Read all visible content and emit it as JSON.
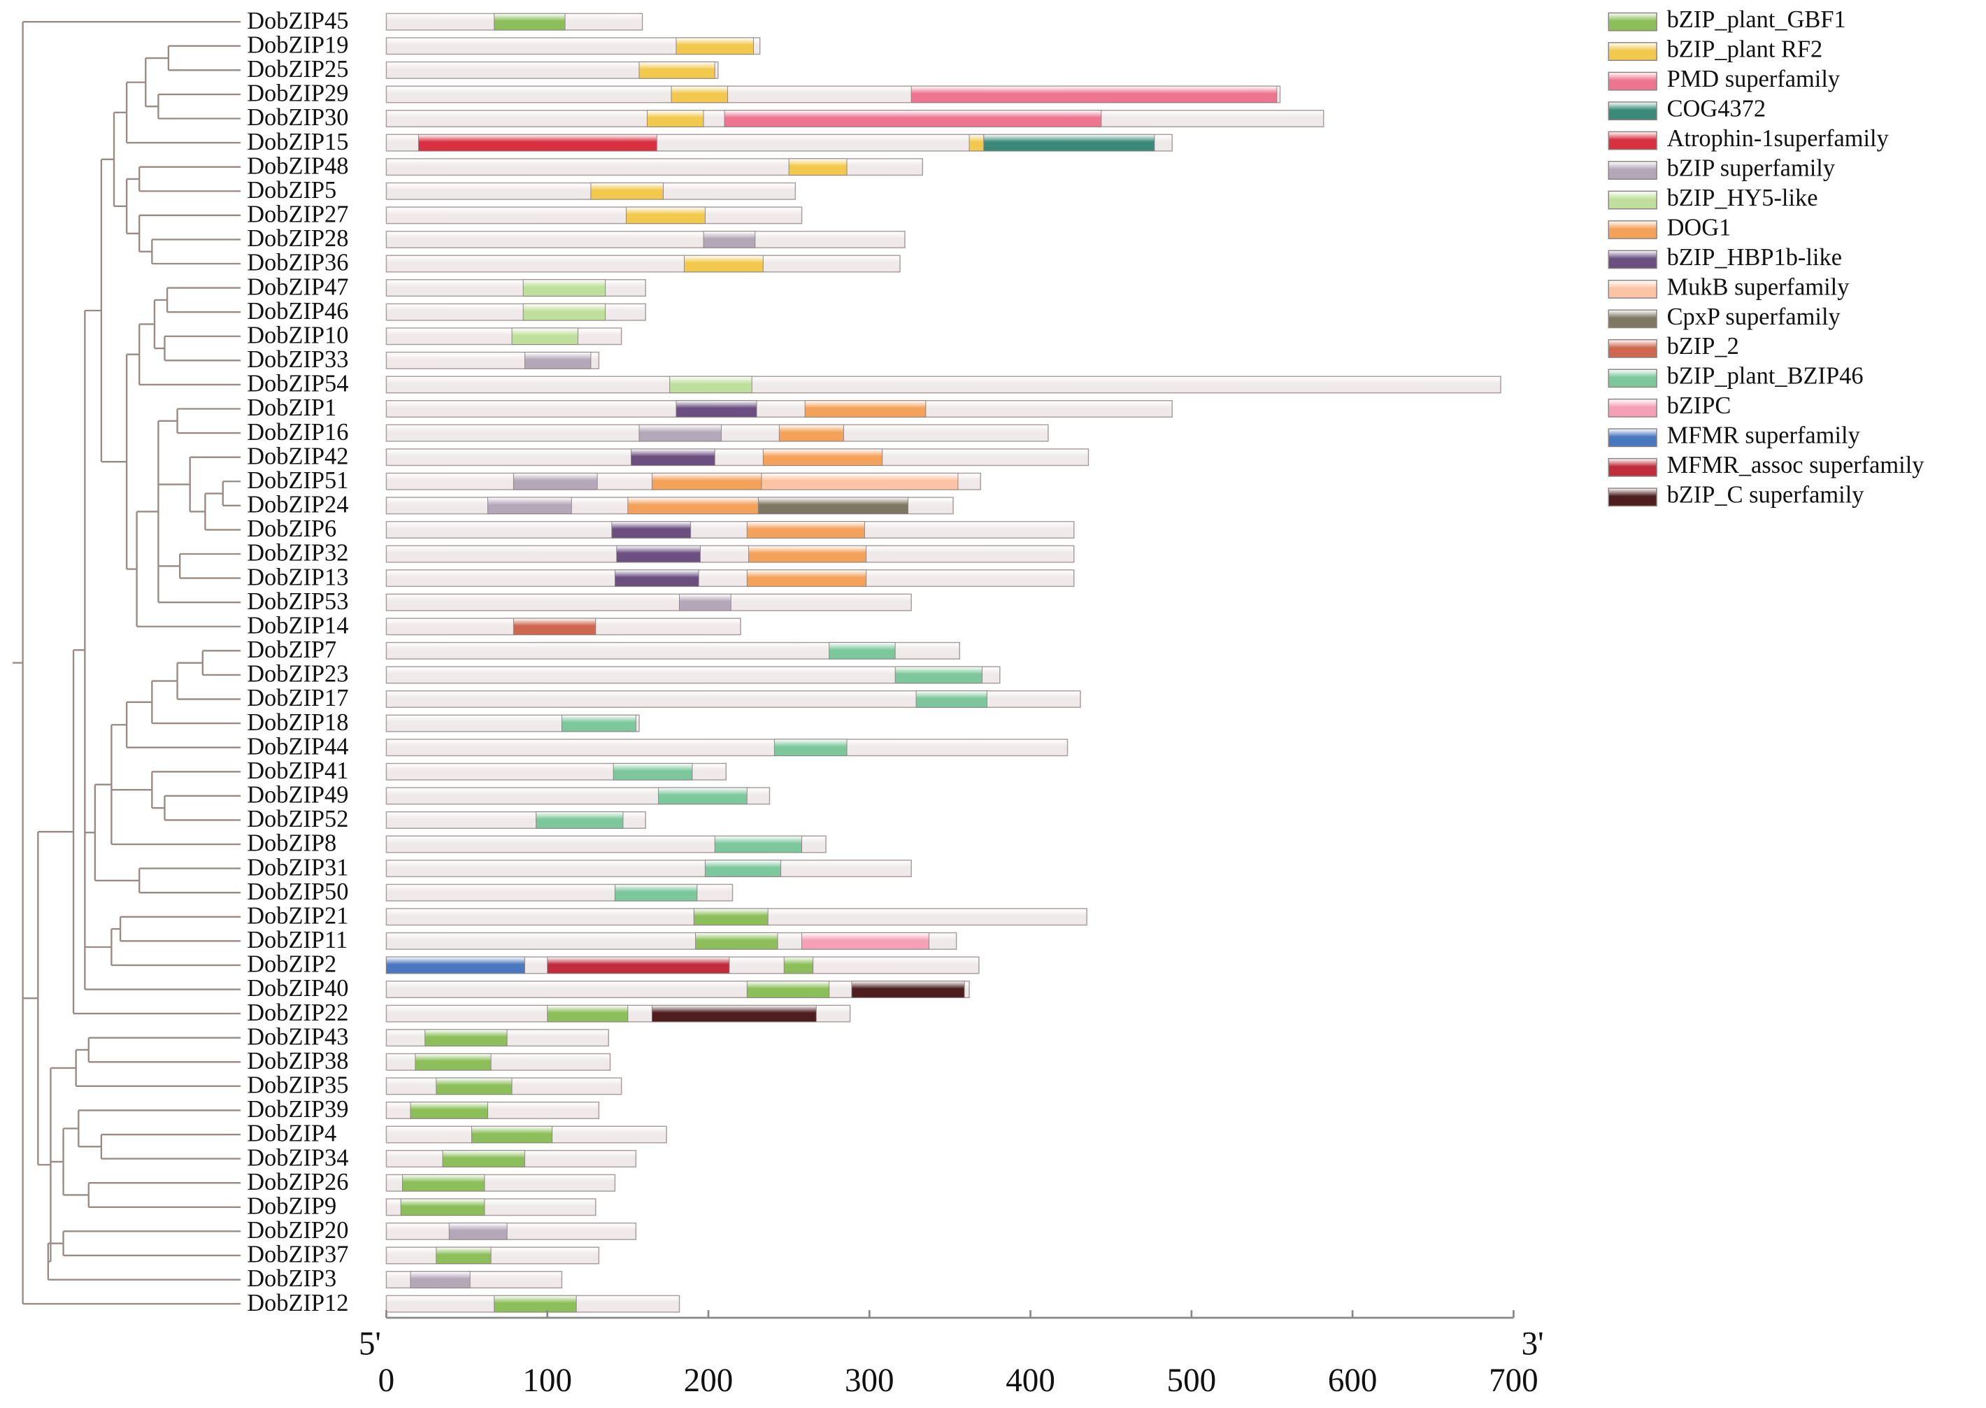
{
  "chart_data": {
    "type": "domain-architecture",
    "xlim": [
      0,
      700
    ],
    "xticks": [
      0,
      100,
      200,
      300,
      400,
      500,
      600,
      700
    ],
    "x_start_label": "5'",
    "x_end_label": "3'",
    "legend": [
      {
        "name": "bZIP_plant_GBF1",
        "color": "#8cbf5a"
      },
      {
        "name": "bZIP_plant RF2",
        "color": "#f2c94c"
      },
      {
        "name": "PMD superfamily",
        "color": "#ee7590"
      },
      {
        "name": "COG4372",
        "color": "#3a8a7a"
      },
      {
        "name": "Atrophin-1superfamily",
        "color": "#d83040"
      },
      {
        "name": "bZIP superfamily",
        "color": "#b4a8b8"
      },
      {
        "name": "bZIP_HY5-like",
        "color": "#bfe09c"
      },
      {
        "name": "DOG1",
        "color": "#f4a25a"
      },
      {
        "name": "bZIP_HBP1b-like",
        "color": "#6a4f80"
      },
      {
        "name": "MukB superfamily",
        "color": "#fcc4a4"
      },
      {
        "name": "CpxP superfamily",
        "color": "#7e7862"
      },
      {
        "name": "bZIP_2",
        "color": "#cf6650"
      },
      {
        "name": "bZIP_plant_BZIP46",
        "color": "#7cc89c"
      },
      {
        "name": "bZIPC",
        "color": "#f6a0b8"
      },
      {
        "name": "MFMR superfamily",
        "color": "#4a78c0"
      },
      {
        "name": "MFMR_assoc superfamily",
        "color": "#c02c3c"
      },
      {
        "name": "bZIP_C superfamily",
        "color": "#4e1e1e"
      }
    ],
    "genes": [
      {
        "name": "DobZIP45",
        "length": 159,
        "domains": [
          {
            "domain": "bZIP_plant_GBF1",
            "start": 67,
            "end": 111
          }
        ]
      },
      {
        "name": "DobZIP19",
        "length": 232,
        "domains": [
          {
            "domain": "bZIP_plant RF2",
            "start": 180,
            "end": 228
          }
        ]
      },
      {
        "name": "DobZIP25",
        "length": 206,
        "domains": [
          {
            "domain": "bZIP_plant RF2",
            "start": 157,
            "end": 204
          }
        ]
      },
      {
        "name": "DobZIP29",
        "length": 555,
        "domains": [
          {
            "domain": "bZIP_plant RF2",
            "start": 177,
            "end": 212
          },
          {
            "domain": "PMD superfamily",
            "start": 326,
            "end": 553
          }
        ]
      },
      {
        "name": "DobZIP30",
        "length": 582,
        "domains": [
          {
            "domain": "bZIP_plant RF2",
            "start": 162,
            "end": 197
          },
          {
            "domain": "PMD superfamily",
            "start": 210,
            "end": 444
          }
        ]
      },
      {
        "name": "DobZIP15",
        "length": 488,
        "domains": [
          {
            "domain": "Atrophin-1superfamily",
            "start": 20,
            "end": 168
          },
          {
            "domain": "bZIP_plant RF2",
            "start": 362,
            "end": 371
          },
          {
            "domain": "COG4372",
            "start": 371,
            "end": 477
          }
        ]
      },
      {
        "name": "DobZIP48",
        "length": 333,
        "domains": [
          {
            "domain": "bZIP_plant RF2",
            "start": 250,
            "end": 286
          }
        ]
      },
      {
        "name": "DobZIP5",
        "length": 254,
        "domains": [
          {
            "domain": "bZIP_plant RF2",
            "start": 127,
            "end": 172
          }
        ]
      },
      {
        "name": "DobZIP27",
        "length": 258,
        "domains": [
          {
            "domain": "bZIP_plant RF2",
            "start": 149,
            "end": 198
          }
        ]
      },
      {
        "name": "DobZIP28",
        "length": 322,
        "domains": [
          {
            "domain": "bZIP superfamily",
            "start": 197,
            "end": 229
          }
        ]
      },
      {
        "name": "DobZIP36",
        "length": 319,
        "domains": [
          {
            "domain": "bZIP_plant RF2",
            "start": 185,
            "end": 234
          }
        ]
      },
      {
        "name": "DobZIP47",
        "length": 161,
        "domains": [
          {
            "domain": "bZIP_HY5-like",
            "start": 85,
            "end": 136
          }
        ]
      },
      {
        "name": "DobZIP46",
        "length": 161,
        "domains": [
          {
            "domain": "bZIP_HY5-like",
            "start": 85,
            "end": 136
          }
        ]
      },
      {
        "name": "DobZIP10",
        "length": 146,
        "domains": [
          {
            "domain": "bZIP_HY5-like",
            "start": 78,
            "end": 119
          }
        ]
      },
      {
        "name": "DobZIP33",
        "length": 132,
        "domains": [
          {
            "domain": "bZIP superfamily",
            "start": 86,
            "end": 127
          }
        ]
      },
      {
        "name": "DobZIP54",
        "length": 692,
        "domains": [
          {
            "domain": "bZIP_HY5-like",
            "start": 176,
            "end": 227
          }
        ]
      },
      {
        "name": "DobZIP1",
        "length": 488,
        "domains": [
          {
            "domain": "bZIP_HBP1b-like",
            "start": 180,
            "end": 230
          },
          {
            "domain": "DOG1",
            "start": 260,
            "end": 335
          }
        ]
      },
      {
        "name": "DobZIP16",
        "length": 411,
        "domains": [
          {
            "domain": "bZIP superfamily",
            "start": 157,
            "end": 208
          },
          {
            "domain": "DOG1",
            "start": 244,
            "end": 284
          }
        ]
      },
      {
        "name": "DobZIP42",
        "length": 436,
        "domains": [
          {
            "domain": "bZIP_HBP1b-like",
            "start": 152,
            "end": 204
          },
          {
            "domain": "DOG1",
            "start": 234,
            "end": 308
          }
        ]
      },
      {
        "name": "DobZIP51",
        "length": 369,
        "domains": [
          {
            "domain": "bZIP superfamily",
            "start": 79,
            "end": 131
          },
          {
            "domain": "DOG1",
            "start": 165,
            "end": 233
          },
          {
            "domain": "MukB superfamily",
            "start": 233,
            "end": 355
          }
        ]
      },
      {
        "name": "DobZIP24",
        "length": 352,
        "domains": [
          {
            "domain": "bZIP superfamily",
            "start": 63,
            "end": 115
          },
          {
            "domain": "DOG1",
            "start": 150,
            "end": 231
          },
          {
            "domain": "CpxP superfamily",
            "start": 231,
            "end": 324
          }
        ]
      },
      {
        "name": "DobZIP6",
        "length": 427,
        "domains": [
          {
            "domain": "bZIP_HBP1b-like",
            "start": 140,
            "end": 189
          },
          {
            "domain": "DOG1",
            "start": 224,
            "end": 297
          }
        ]
      },
      {
        "name": "DobZIP32",
        "length": 427,
        "domains": [
          {
            "domain": "bZIP_HBP1b-like",
            "start": 143,
            "end": 195
          },
          {
            "domain": "DOG1",
            "start": 225,
            "end": 298
          }
        ]
      },
      {
        "name": "DobZIP13",
        "length": 427,
        "domains": [
          {
            "domain": "bZIP_HBP1b-like",
            "start": 142,
            "end": 194
          },
          {
            "domain": "DOG1",
            "start": 224,
            "end": 298
          }
        ]
      },
      {
        "name": "DobZIP53",
        "length": 326,
        "domains": [
          {
            "domain": "bZIP superfamily",
            "start": 182,
            "end": 214
          }
        ]
      },
      {
        "name": "DobZIP14",
        "length": 220,
        "domains": [
          {
            "domain": "bZIP_2",
            "start": 79,
            "end": 130
          }
        ]
      },
      {
        "name": "DobZIP7",
        "length": 356,
        "domains": [
          {
            "domain": "bZIP_plant_BZIP46",
            "start": 275,
            "end": 316
          }
        ]
      },
      {
        "name": "DobZIP23",
        "length": 381,
        "domains": [
          {
            "domain": "bZIP_plant_BZIP46",
            "start": 316,
            "end": 370
          }
        ]
      },
      {
        "name": "DobZIP17",
        "length": 431,
        "domains": [
          {
            "domain": "bZIP_plant_BZIP46",
            "start": 329,
            "end": 373
          }
        ]
      },
      {
        "name": "DobZIP18",
        "length": 157,
        "domains": [
          {
            "domain": "bZIP_plant_BZIP46",
            "start": 109,
            "end": 155
          }
        ]
      },
      {
        "name": "DobZIP44",
        "length": 423,
        "domains": [
          {
            "domain": "bZIP_plant_BZIP46",
            "start": 241,
            "end": 286
          }
        ]
      },
      {
        "name": "DobZIP41",
        "length": 211,
        "domains": [
          {
            "domain": "bZIP_plant_BZIP46",
            "start": 141,
            "end": 190
          }
        ]
      },
      {
        "name": "DobZIP49",
        "length": 238,
        "domains": [
          {
            "domain": "bZIP_plant_BZIP46",
            "start": 169,
            "end": 224
          }
        ]
      },
      {
        "name": "DobZIP52",
        "length": 161,
        "domains": [
          {
            "domain": "bZIP_plant_BZIP46",
            "start": 93,
            "end": 147
          }
        ]
      },
      {
        "name": "DobZIP8",
        "length": 273,
        "domains": [
          {
            "domain": "bZIP_plant_BZIP46",
            "start": 204,
            "end": 258
          }
        ]
      },
      {
        "name": "DobZIP31",
        "length": 326,
        "domains": [
          {
            "domain": "bZIP_plant_BZIP46",
            "start": 198,
            "end": 245
          }
        ]
      },
      {
        "name": "DobZIP50",
        "length": 215,
        "domains": [
          {
            "domain": "bZIP_plant_BZIP46",
            "start": 142,
            "end": 193
          }
        ]
      },
      {
        "name": "DobZIP21",
        "length": 435,
        "domains": [
          {
            "domain": "bZIP_plant_GBF1",
            "start": 191,
            "end": 237
          }
        ]
      },
      {
        "name": "DobZIP11",
        "length": 354,
        "domains": [
          {
            "domain": "bZIP_plant_GBF1",
            "start": 192,
            "end": 243
          },
          {
            "domain": "bZIPC",
            "start": 258,
            "end": 337
          }
        ]
      },
      {
        "name": "DobZIP2",
        "length": 368,
        "domains": [
          {
            "domain": "MFMR superfamily",
            "start": 0,
            "end": 86
          },
          {
            "domain": "MFMR_assoc superfamily",
            "start": 100,
            "end": 213
          },
          {
            "domain": "bZIP_plant_GBF1",
            "start": 247,
            "end": 265
          }
        ]
      },
      {
        "name": "DobZIP40",
        "length": 362,
        "domains": [
          {
            "domain": "bZIP_plant_GBF1",
            "start": 224,
            "end": 275
          },
          {
            "domain": "bZIP_C superfamily",
            "start": 289,
            "end": 359
          }
        ]
      },
      {
        "name": "DobZIP22",
        "length": 288,
        "domains": [
          {
            "domain": "bZIP_plant_GBF1",
            "start": 100,
            "end": 150
          },
          {
            "domain": "bZIP_C superfamily",
            "start": 165,
            "end": 267
          }
        ]
      },
      {
        "name": "DobZIP43",
        "length": 138,
        "domains": [
          {
            "domain": "bZIP_plant_GBF1",
            "start": 24,
            "end": 75
          }
        ]
      },
      {
        "name": "DobZIP38",
        "length": 139,
        "domains": [
          {
            "domain": "bZIP_plant_GBF1",
            "start": 18,
            "end": 65
          }
        ]
      },
      {
        "name": "DobZIP35",
        "length": 146,
        "domains": [
          {
            "domain": "bZIP_plant_GBF1",
            "start": 31,
            "end": 78
          }
        ]
      },
      {
        "name": "DobZIP39",
        "length": 132,
        "domains": [
          {
            "domain": "bZIP_plant_GBF1",
            "start": 15,
            "end": 63
          }
        ]
      },
      {
        "name": "DobZIP4",
        "length": 174,
        "domains": [
          {
            "domain": "bZIP_plant_GBF1",
            "start": 53,
            "end": 103
          }
        ]
      },
      {
        "name": "DobZIP34",
        "length": 155,
        "domains": [
          {
            "domain": "bZIP_plant_GBF1",
            "start": 35,
            "end": 86
          }
        ]
      },
      {
        "name": "DobZIP26",
        "length": 142,
        "domains": [
          {
            "domain": "bZIP_plant_GBF1",
            "start": 10,
            "end": 61
          }
        ]
      },
      {
        "name": "DobZIP9",
        "length": 130,
        "domains": [
          {
            "domain": "bZIP_plant_GBF1",
            "start": 9,
            "end": 61
          }
        ]
      },
      {
        "name": "DobZIP20",
        "length": 155,
        "domains": [
          {
            "domain": "bZIP superfamily",
            "start": 39,
            "end": 75
          }
        ]
      },
      {
        "name": "DobZIP37",
        "length": 132,
        "domains": [
          {
            "domain": "bZIP_plant_GBF1",
            "start": 31,
            "end": 65
          }
        ]
      },
      {
        "name": "DobZIP3",
        "length": 109,
        "domains": [
          {
            "domain": "bZIP superfamily",
            "start": 15,
            "end": 52
          }
        ]
      },
      {
        "name": "DobZIP12",
        "length": 182,
        "domains": [
          {
            "domain": "bZIP_plant_GBF1",
            "start": 67,
            "end": 118
          }
        ]
      }
    ]
  }
}
